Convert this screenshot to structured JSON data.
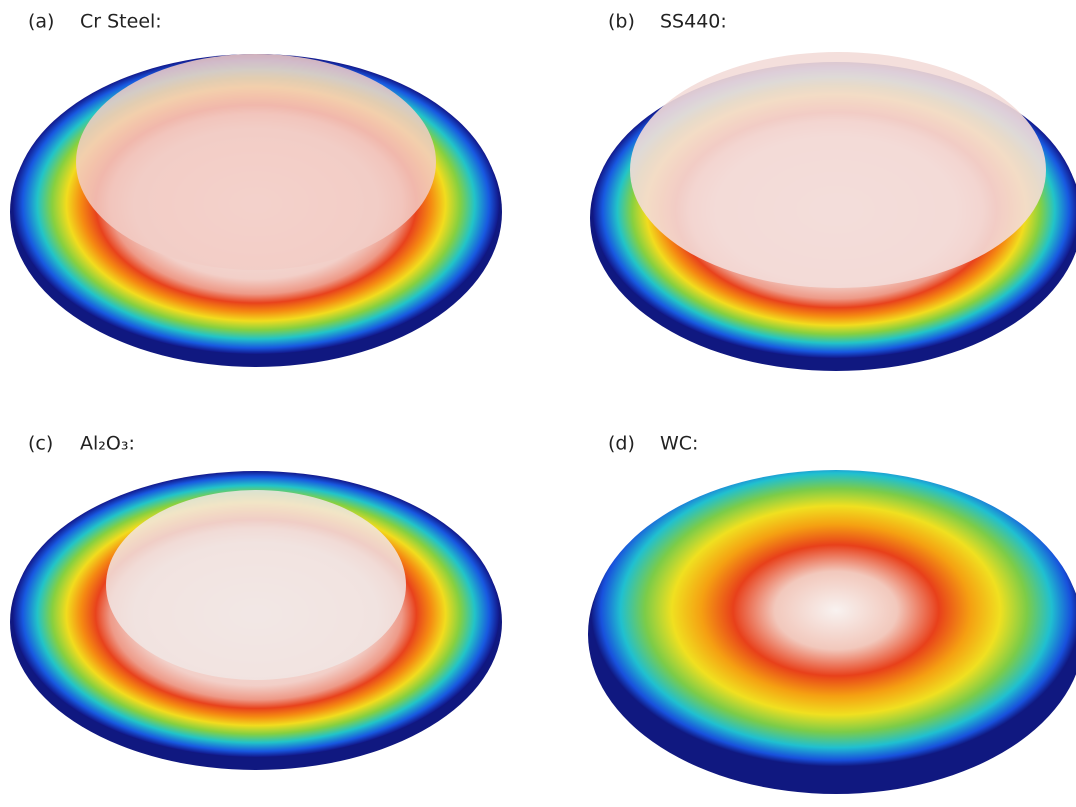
{
  "panels": [
    {
      "tag": "(a)",
      "label": "Cr Steel:"
    },
    {
      "tag": "(b)",
      "label": "SS440:"
    },
    {
      "tag": "(c)",
      "label": "Al₂O₃:"
    },
    {
      "tag": "(d)",
      "label": "WC:"
    }
  ]
}
